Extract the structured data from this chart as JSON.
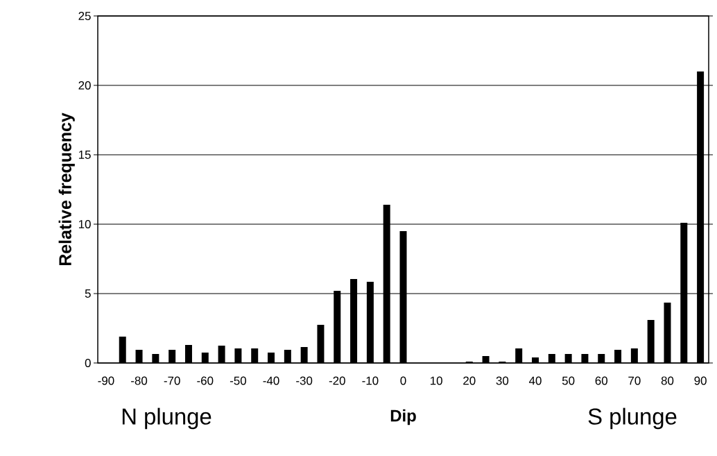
{
  "chart_data": {
    "type": "bar",
    "xlabel": "Dip",
    "ylabel": "Relative frequency",
    "categories": [
      "-90",
      null,
      "-80",
      null,
      "-70",
      null,
      "-60",
      null,
      "-50",
      null,
      "-40",
      null,
      "-30",
      null,
      "-20",
      null,
      "-10",
      null,
      "0",
      null,
      "10",
      null,
      "20",
      null,
      "30",
      null,
      "40",
      null,
      "50",
      null,
      "60",
      null,
      "70",
      null,
      "80",
      null,
      "90"
    ],
    "values": [
      0,
      1.9,
      0.95,
      0.65,
      0.95,
      1.3,
      0.75,
      1.25,
      1.05,
      1.05,
      0.75,
      0.95,
      1.15,
      2.75,
      5.2,
      6.05,
      5.85,
      11.4,
      9.5,
      0,
      0,
      0,
      0.1,
      0.5,
      0.1,
      1.05,
      0.4,
      0.65,
      0.65,
      0.65,
      0.65,
      0.95,
      1.05,
      3.1,
      4.35,
      10.1,
      21.0
    ],
    "color": "#000000",
    "ylim": [
      0,
      25
    ],
    "yticks": [
      0,
      5,
      10,
      15,
      20,
      25
    ],
    "grid": "y",
    "annotations": [
      "N plunge",
      "S plunge"
    ]
  }
}
